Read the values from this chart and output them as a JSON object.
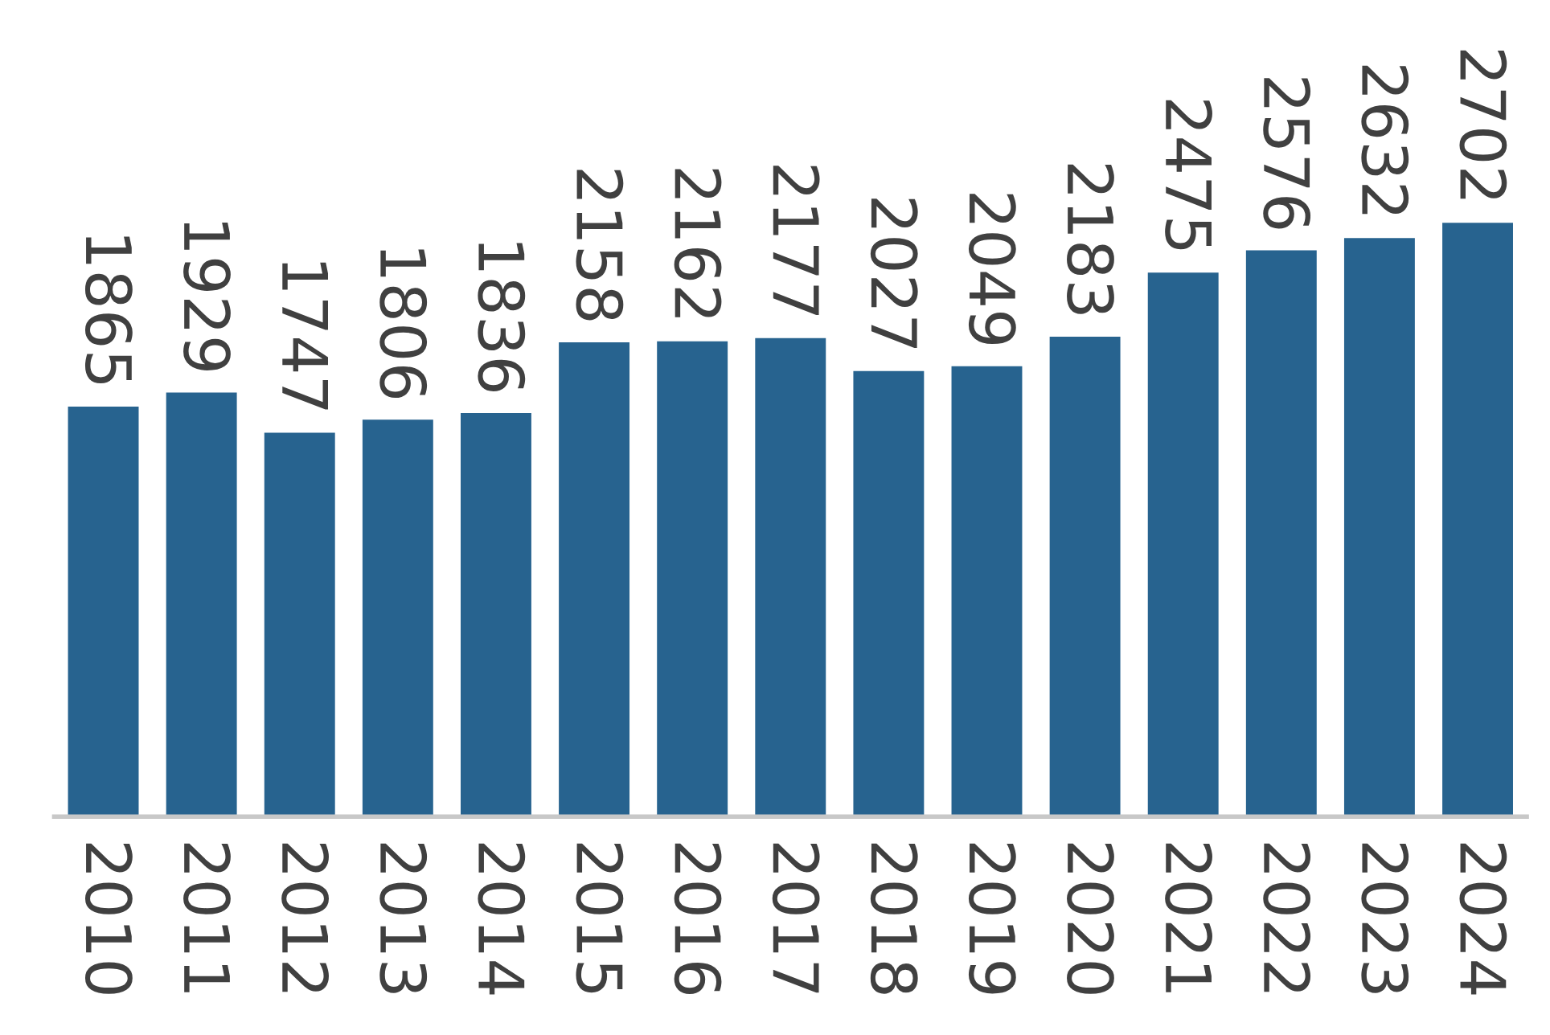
{
  "chart_data": {
    "type": "bar",
    "categories": [
      "2010",
      "2011",
      "2012",
      "2013",
      "2014",
      "2015",
      "2016",
      "2017",
      "2018",
      "2019",
      "2020",
      "2021",
      "2022",
      "2023",
      "2024"
    ],
    "values": [
      1865,
      1929,
      1747,
      1806,
      1836,
      2158,
      2162,
      2177,
      2027,
      2049,
      2183,
      2475,
      2576,
      2632,
      2702
    ],
    "color": "#27638f",
    "data_labels": true,
    "grid": false,
    "legend": false
  }
}
